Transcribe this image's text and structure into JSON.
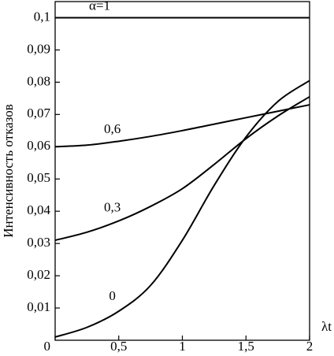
{
  "chart_data": {
    "type": "line",
    "y_label": "Интенсивность отказов",
    "x_label": "λt",
    "x": [
      0,
      0.25,
      0.5,
      0.75,
      1,
      1.25,
      1.5,
      1.75,
      2
    ],
    "series": [
      {
        "name": "α=1",
        "color": "#000000",
        "values": [
          0.1,
          0.1,
          0.1,
          0.1,
          0.1,
          0.1,
          0.1,
          0.1,
          0.1
        ]
      },
      {
        "name": "0,6",
        "color": "#000000",
        "values": [
          0.06,
          0.0605,
          0.0617,
          0.0632,
          0.065,
          0.067,
          0.069,
          0.071,
          0.073
        ]
      },
      {
        "name": "0,3",
        "color": "#000000",
        "values": [
          0.031,
          0.0335,
          0.037,
          0.0415,
          0.047,
          0.0545,
          0.0625,
          0.0695,
          0.0755
        ]
      },
      {
        "name": "0",
        "color": "#000000",
        "values": [
          0.001,
          0.004,
          0.009,
          0.017,
          0.031,
          0.048,
          0.063,
          0.074,
          0.0805
        ]
      }
    ],
    "xlim": [
      0,
      2
    ],
    "ylim": [
      0,
      0.105
    ],
    "xticks": [
      0,
      {
        "value": 0.5,
        "label": "0,5"
      },
      1,
      {
        "value": 1.5,
        "label": "1,5"
      },
      2
    ],
    "yticks": [
      {
        "value": 0.01,
        "label": "0,01"
      },
      {
        "value": 0.02,
        "label": "0,02"
      },
      {
        "value": 0.03,
        "label": "0,03"
      },
      {
        "value": 0.04,
        "label": "0,04"
      },
      {
        "value": 0.05,
        "label": "0,05"
      },
      {
        "value": 0.06,
        "label": "0,06"
      },
      {
        "value": 0.07,
        "label": "0,07"
      },
      {
        "value": 0.08,
        "label": "0,08"
      },
      {
        "value": 0.09,
        "label": "0,09"
      },
      {
        "value": 0.1,
        "label": "0,1"
      }
    ],
    "grid": false
  }
}
